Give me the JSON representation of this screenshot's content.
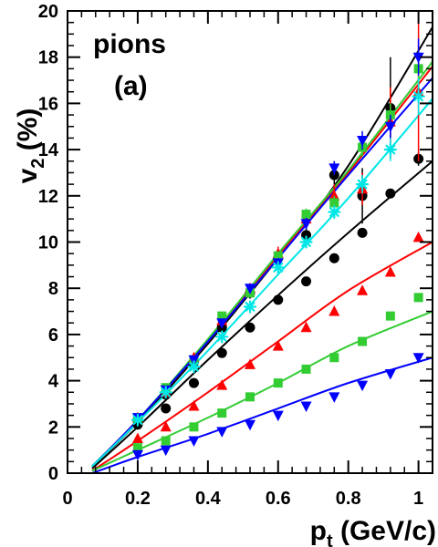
{
  "chart_data": {
    "type": "scatter",
    "title": "",
    "xlabel_main": "p",
    "xlabel_sub": "t",
    "xlabel_rest": " (GeV/c)",
    "ylabel_main": "v",
    "ylabel_sub": "2",
    "ylabel_rest": " (%)",
    "annotation_line1": "pions",
    "annotation_line2": "(a)",
    "xlim": [
      0,
      1.04
    ],
    "ylim": [
      0,
      20
    ],
    "x_ticks": [
      0,
      0.2,
      0.4,
      0.6,
      0.8,
      1
    ],
    "x_tick_labels": [
      "0",
      "0.2",
      "0.4",
      "0.6",
      "0.8",
      "1"
    ],
    "y_ticks": [
      0,
      2,
      4,
      6,
      8,
      10,
      12,
      14,
      16,
      18,
      20
    ],
    "y_tick_labels": [
      "0",
      "2",
      "4",
      "6",
      "8",
      "10",
      "12",
      "14",
      "16",
      "18",
      "20"
    ],
    "grid": false,
    "legend": "none",
    "series": [
      {
        "color": "#000000",
        "marker": "circle",
        "x": [
          0.2,
          0.28,
          0.36,
          0.44,
          0.52,
          0.6,
          0.68,
          0.76,
          0.84,
          0.92,
          1.0
        ],
        "y": [
          2.1,
          2.8,
          3.9,
          5.2,
          6.3,
          7.5,
          8.3,
          9.3,
          10.4,
          12.1,
          13.6
        ],
        "yerr": [
          0.1,
          0.1,
          0.1,
          0.1,
          0.1,
          0.1,
          0.1,
          0.15,
          0.15,
          0.2,
          0.3
        ],
        "fit": [
          [
            0.07,
            0.2
          ],
          [
            0.2,
            2.0
          ],
          [
            0.4,
            4.9
          ],
          [
            0.6,
            7.7
          ],
          [
            0.8,
            10.4
          ],
          [
            1.04,
            13.5
          ]
        ]
      },
      {
        "color": "#ff0000",
        "marker": "triangle-up",
        "x": [
          0.2,
          0.28,
          0.36,
          0.44,
          0.52,
          0.6,
          0.68,
          0.76,
          0.84,
          0.92,
          1.0
        ],
        "y": [
          1.5,
          2.0,
          2.9,
          3.8,
          4.7,
          5.5,
          6.3,
          7.0,
          7.9,
          8.7,
          10.2
        ],
        "yerr": [
          0.1,
          0.1,
          0.1,
          0.1,
          0.1,
          0.1,
          0.1,
          0.1,
          0.1,
          0.1,
          0.1
        ],
        "fit": [
          [
            0.07,
            0.1
          ],
          [
            0.2,
            1.4
          ],
          [
            0.4,
            3.5
          ],
          [
            0.6,
            5.7
          ],
          [
            0.8,
            7.9
          ],
          [
            1.04,
            10.0
          ]
        ]
      },
      {
        "color": "#33cc33",
        "marker": "square",
        "x": [
          0.2,
          0.28,
          0.36,
          0.44,
          0.52,
          0.6,
          0.68,
          0.76,
          0.84,
          0.92,
          1.0
        ],
        "y": [
          1.1,
          1.4,
          2.0,
          2.6,
          3.3,
          3.9,
          4.5,
          5.0,
          5.7,
          6.8,
          7.6
        ],
        "yerr": [
          0.1,
          0.1,
          0.1,
          0.1,
          0.1,
          0.1,
          0.1,
          0.1,
          0.1,
          0.1,
          0.15
        ],
        "fit": [
          [
            0.07,
            0.1
          ],
          [
            0.2,
            1.0
          ],
          [
            0.4,
            2.4
          ],
          [
            0.6,
            3.9
          ],
          [
            0.8,
            5.5
          ],
          [
            1.04,
            7.0
          ]
        ]
      },
      {
        "color": "#0000ff",
        "marker": "triangle-down",
        "x": [
          0.2,
          0.28,
          0.36,
          0.44,
          0.52,
          0.6,
          0.68,
          0.76,
          0.84,
          0.92,
          1.0
        ],
        "y": [
          0.8,
          1.0,
          1.4,
          1.8,
          2.1,
          2.5,
          2.9,
          3.3,
          3.8,
          4.3,
          5.0
        ],
        "yerr": [
          0.1,
          0.1,
          0.1,
          0.1,
          0.1,
          0.1,
          0.1,
          0.1,
          0.1,
          0.1,
          0.1
        ],
        "fit": [
          [
            0.07,
            0.0
          ],
          [
            0.2,
            0.7
          ],
          [
            0.4,
            1.7
          ],
          [
            0.6,
            2.8
          ],
          [
            0.8,
            3.9
          ],
          [
            1.04,
            5.0
          ]
        ]
      },
      {
        "color": "#000000",
        "marker": "circle",
        "x": [
          0.2,
          0.28,
          0.36,
          0.44,
          0.52,
          0.6,
          0.68,
          0.76,
          0.84,
          0.92
        ],
        "y": [
          2.3,
          3.4,
          4.8,
          6.3,
          7.8,
          9.3,
          10.3,
          12.9,
          12.0,
          15.8
        ],
        "yerr": [
          0.15,
          0.15,
          0.15,
          0.2,
          0.25,
          0.3,
          0.4,
          0.6,
          1.2,
          2.2
        ],
        "fit": [
          [
            0.07,
            0.3
          ],
          [
            0.2,
            2.2
          ],
          [
            0.4,
            5.6
          ],
          [
            0.6,
            9.3
          ],
          [
            0.8,
            13.3
          ],
          [
            1.04,
            19.3
          ]
        ]
      },
      {
        "color": "#ff0000",
        "marker": "triangle-up",
        "x": [
          0.2,
          0.28,
          0.36,
          0.44,
          0.52,
          0.6,
          0.68,
          0.76,
          0.84,
          0.92,
          1.0
        ],
        "y": [
          2.4,
          3.5,
          5.0,
          6.6,
          8.0,
          9.5,
          11.0,
          12.0,
          12.3,
          15.2,
          16.5
        ],
        "yerr": [
          0.15,
          0.15,
          0.15,
          0.2,
          0.2,
          0.3,
          0.4,
          0.5,
          0.7,
          1.5,
          3.0
        ],
        "fit": [
          [
            0.07,
            0.3
          ],
          [
            0.2,
            2.3
          ],
          [
            0.4,
            5.7
          ],
          [
            0.6,
            9.4
          ],
          [
            0.8,
            13.0
          ],
          [
            1.04,
            17.6
          ]
        ]
      },
      {
        "color": "#33cc33",
        "marker": "square",
        "x": [
          0.2,
          0.28,
          0.36,
          0.44,
          0.52,
          0.6,
          0.68,
          0.76,
          0.84,
          0.92,
          1.0
        ],
        "y": [
          2.4,
          3.7,
          4.9,
          6.8,
          7.8,
          9.4,
          11.2,
          11.7,
          14.1,
          15.5,
          17.5
        ],
        "yerr": [
          0.15,
          0.15,
          0.15,
          0.15,
          0.2,
          0.2,
          0.25,
          0.3,
          0.4,
          0.5,
          0.8
        ],
        "fit": [
          [
            0.07,
            0.3
          ],
          [
            0.2,
            2.3
          ],
          [
            0.4,
            5.8
          ],
          [
            0.6,
            9.5
          ],
          [
            0.8,
            13.1
          ],
          [
            1.04,
            17.8
          ]
        ]
      },
      {
        "color": "#0000ff",
        "marker": "triangle-down",
        "x": [
          0.2,
          0.28,
          0.36,
          0.44,
          0.52,
          0.6,
          0.68,
          0.76,
          0.84,
          0.92,
          1.0
        ],
        "y": [
          2.4,
          3.6,
          4.9,
          6.5,
          8.0,
          9.1,
          10.8,
          13.2,
          14.4,
          15.0,
          18.0
        ],
        "yerr": [
          0.15,
          0.15,
          0.15,
          0.15,
          0.2,
          0.2,
          0.25,
          0.3,
          0.4,
          0.5,
          0.8
        ],
        "fit": [
          [
            0.07,
            0.3
          ],
          [
            0.2,
            2.3
          ],
          [
            0.4,
            5.7
          ],
          [
            0.6,
            9.3
          ],
          [
            0.8,
            12.9
          ],
          [
            1.04,
            17.1
          ]
        ]
      },
      {
        "color": "#00e6e6",
        "marker": "star",
        "x": [
          0.2,
          0.28,
          0.36,
          0.44,
          0.52,
          0.6,
          0.68,
          0.76,
          0.84,
          0.92,
          1.0
        ],
        "y": [
          2.3,
          3.5,
          4.6,
          5.9,
          7.2,
          8.9,
          10.0,
          11.3,
          12.5,
          14.0,
          16.3
        ],
        "yerr": [
          0.15,
          0.15,
          0.15,
          0.15,
          0.2,
          0.2,
          0.25,
          0.3,
          0.4,
          0.5,
          0.8
        ],
        "fit": [
          [
            0.07,
            0.3
          ],
          [
            0.2,
            2.2
          ],
          [
            0.4,
            5.3
          ],
          [
            0.6,
            8.6
          ],
          [
            0.8,
            11.9
          ],
          [
            1.04,
            16.2
          ]
        ]
      }
    ]
  }
}
